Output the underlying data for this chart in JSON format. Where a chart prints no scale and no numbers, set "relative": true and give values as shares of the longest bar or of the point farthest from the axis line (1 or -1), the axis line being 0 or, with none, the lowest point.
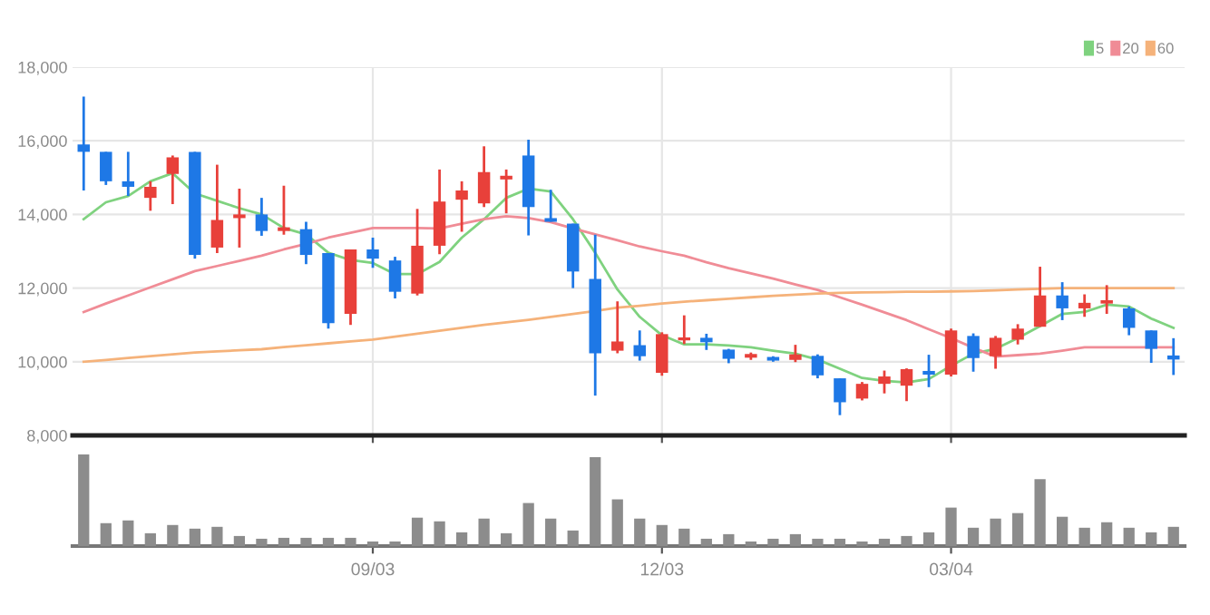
{
  "chart_data": [
    {
      "type": "candlestick",
      "categories": [
        null,
        null,
        null,
        null,
        null,
        null,
        null,
        null,
        null,
        null,
        null,
        null,
        null,
        null,
        null,
        null,
        null,
        null,
        null,
        null,
        null,
        null,
        null,
        null,
        null,
        null,
        null,
        null,
        null,
        null,
        null,
        null,
        null,
        null,
        null,
        null,
        null,
        null,
        null,
        null,
        null,
        null,
        null,
        null,
        null,
        null,
        null,
        null,
        null,
        null
      ],
      "ohlc": [
        [
          15900,
          17200,
          14650,
          15700
        ],
        [
          15700,
          15700,
          14800,
          14900
        ],
        [
          14900,
          15700,
          14500,
          14750
        ],
        [
          14450,
          14900,
          14100,
          14750
        ],
        [
          15100,
          15600,
          14280,
          15550
        ],
        [
          15700,
          15700,
          12800,
          12900
        ],
        [
          13100,
          15350,
          12950,
          13850
        ],
        [
          13900,
          14700,
          13100,
          14000
        ],
        [
          14000,
          14450,
          13420,
          13550
        ],
        [
          13550,
          14780,
          13450,
          13650
        ],
        [
          13600,
          13800,
          12650,
          12900
        ],
        [
          12950,
          12950,
          10900,
          11050
        ],
        [
          11300,
          13050,
          11000,
          13050
        ],
        [
          13050,
          13370,
          12550,
          12800
        ],
        [
          12750,
          12850,
          11720,
          11900
        ],
        [
          11850,
          14150,
          11800,
          13150
        ],
        [
          13150,
          15220,
          12920,
          14350
        ],
        [
          14400,
          14900,
          13530,
          14650
        ],
        [
          14300,
          15850,
          14200,
          15150
        ],
        [
          14950,
          15220,
          14030,
          15050
        ],
        [
          15600,
          16030,
          13430,
          14200
        ],
        [
          13900,
          14670,
          13800,
          13800
        ],
        [
          13750,
          13750,
          12000,
          12450
        ],
        [
          12250,
          13450,
          9080,
          10230
        ],
        [
          10300,
          11640,
          10230,
          10550
        ],
        [
          10450,
          10850,
          10030,
          10150
        ],
        [
          9700,
          10800,
          9620,
          10750
        ],
        [
          10580,
          11260,
          10480,
          10660
        ],
        [
          10650,
          10760,
          10320,
          10530
        ],
        [
          10330,
          10350,
          9960,
          10080
        ],
        [
          10110,
          10250,
          10050,
          10210
        ],
        [
          10130,
          10150,
          10000,
          10030
        ],
        [
          10050,
          10460,
          9990,
          10200
        ],
        [
          10160,
          10200,
          9550,
          9630
        ],
        [
          9550,
          9550,
          8550,
          8900
        ],
        [
          9000,
          9450,
          8950,
          9400
        ],
        [
          9400,
          9760,
          9140,
          9600
        ],
        [
          9350,
          9820,
          8930,
          9800
        ],
        [
          9750,
          10190,
          9310,
          9650
        ],
        [
          9650,
          10900,
          9600,
          10850
        ],
        [
          10700,
          10770,
          9730,
          10100
        ],
        [
          10150,
          10700,
          9810,
          10650
        ],
        [
          10600,
          11020,
          10470,
          10900
        ],
        [
          10950,
          12580,
          10950,
          11800
        ],
        [
          11800,
          12160,
          11130,
          11450
        ],
        [
          11450,
          11830,
          11220,
          11600
        ],
        [
          11580,
          12080,
          11300,
          11670
        ],
        [
          11450,
          11500,
          10720,
          10920
        ],
        [
          10850,
          10850,
          9970,
          10350
        ],
        [
          10170,
          10640,
          9640,
          10060
        ]
      ],
      "colors": [
        "#1e78e6",
        "#1e78e6",
        "#1e78e6",
        "#e8403a",
        "#e8403a",
        "#1e78e6",
        "#e8403a",
        "#e8403a",
        "#1e78e6",
        "#e8403a",
        "#1e78e6",
        "#1e78e6",
        "#e8403a",
        "#1e78e6",
        "#1e78e6",
        "#e8403a",
        "#e8403a",
        "#e8403a",
        "#e8403a",
        "#e8403a",
        "#1e78e6",
        "#1e78e6",
        "#1e78e6",
        "#1e78e6",
        "#e8403a",
        "#1e78e6",
        "#e8403a",
        "#e8403a",
        "#1e78e6",
        "#1e78e6",
        "#e8403a",
        "#1e78e6",
        "#e8403a",
        "#1e78e6",
        "#1e78e6",
        "#e8403a",
        "#e8403a",
        "#e8403a",
        "#1e78e6",
        "#e8403a",
        "#1e78e6",
        "#e8403a",
        "#e8403a",
        "#e8403a",
        "#1e78e6",
        "#e8403a",
        "#e8403a",
        "#1e78e6",
        "#1e78e6",
        "#1e78e6"
      ],
      "series": [
        {
          "name": "5",
          "type": "line",
          "color": "#7fd27f",
          "values": [
            13870,
            14330,
            14500,
            14900,
            15120,
            14570,
            14370,
            14170,
            14000,
            13630,
            13460,
            12960,
            12760,
            12680,
            12380,
            12380,
            12710,
            13370,
            13870,
            14450,
            14700,
            14620,
            13870,
            12960,
            11960,
            11220,
            10720,
            10470,
            10470,
            10440,
            10390,
            10300,
            10220,
            10060,
            9810,
            9560,
            9480,
            9440,
            9530,
            9890,
            10220,
            10350,
            10640,
            10970,
            11300,
            11350,
            11550,
            11500,
            11170,
            10920
          ]
        },
        {
          "name": "20",
          "type": "line",
          "color": "#f08c96",
          "values": [
            11350,
            11580,
            11800,
            12020,
            12240,
            12460,
            12600,
            12740,
            12880,
            13050,
            13200,
            13370,
            13500,
            13630,
            13630,
            13630,
            13620,
            13750,
            13870,
            13950,
            13900,
            13790,
            13620,
            13460,
            13300,
            13130,
            13000,
            12880,
            12700,
            12540,
            12400,
            12260,
            12100,
            11950,
            11750,
            11550,
            11340,
            11130,
            10880,
            10640,
            10380,
            10140,
            10180,
            10220,
            10300,
            10390,
            10390,
            10390,
            10390,
            10390
          ]
        },
        {
          "name": "60",
          "type": "line",
          "color": "#f5b27a",
          "values": [
            10000,
            10050,
            10100,
            10150,
            10200,
            10250,
            10280,
            10310,
            10340,
            10400,
            10450,
            10500,
            10550,
            10600,
            10680,
            10760,
            10840,
            10920,
            11000,
            11070,
            11140,
            11220,
            11300,
            11380,
            11470,
            11520,
            11580,
            11630,
            11670,
            11710,
            11750,
            11790,
            11820,
            11850,
            11870,
            11880,
            11890,
            11900,
            11900,
            11910,
            11920,
            11940,
            11960,
            11980,
            12000,
            12000,
            12000,
            12000,
            12000,
            12000
          ]
        }
      ],
      "ylim": [
        8000,
        18000
      ],
      "yticks": [
        {
          "value": 8000,
          "label": "8,000"
        },
        {
          "value": 10000,
          "label": "10,000"
        },
        {
          "value": 12000,
          "label": "12,000"
        },
        {
          "value": 14000,
          "label": "14,000"
        },
        {
          "value": 16000,
          "label": "16,000"
        },
        {
          "value": 18000,
          "label": "18,000"
        }
      ],
      "grid": true,
      "legend": "top right",
      "tick_labels": "y"
    },
    {
      "type": "bar",
      "categories": [
        null,
        null,
        null,
        null,
        null,
        null,
        null,
        null,
        null,
        null,
        null,
        null,
        null,
        "09/03",
        null,
        null,
        null,
        null,
        null,
        null,
        null,
        null,
        null,
        null,
        null,
        null,
        "12/03",
        null,
        null,
        null,
        null,
        null,
        null,
        null,
        null,
        null,
        null,
        null,
        null,
        "03/04",
        null,
        null,
        null,
        null,
        null,
        null,
        null,
        null,
        null,
        null
      ],
      "values": [
        1,
        0.25,
        0.28,
        0.14,
        0.23,
        0.19,
        0.21,
        0.11,
        0.08,
        0.09,
        0.09,
        0.09,
        0.09,
        0.05,
        0.05,
        0.31,
        0.27,
        0.15,
        0.3,
        0.14,
        0.47,
        0.3,
        0.17,
        0.97,
        0.51,
        0.3,
        0.23,
        0.19,
        0.08,
        0.13,
        0.05,
        0.08,
        0.13,
        0.08,
        0.08,
        0.05,
        0.08,
        0.11,
        0.15,
        0.42,
        0.2,
        0.3,
        0.36,
        0.73,
        0.32,
        0.2,
        0.26,
        0.2,
        0.15,
        0.21
      ],
      "color": "#8c8c8c",
      "relative": true,
      "tick_labels": "x"
    }
  ]
}
